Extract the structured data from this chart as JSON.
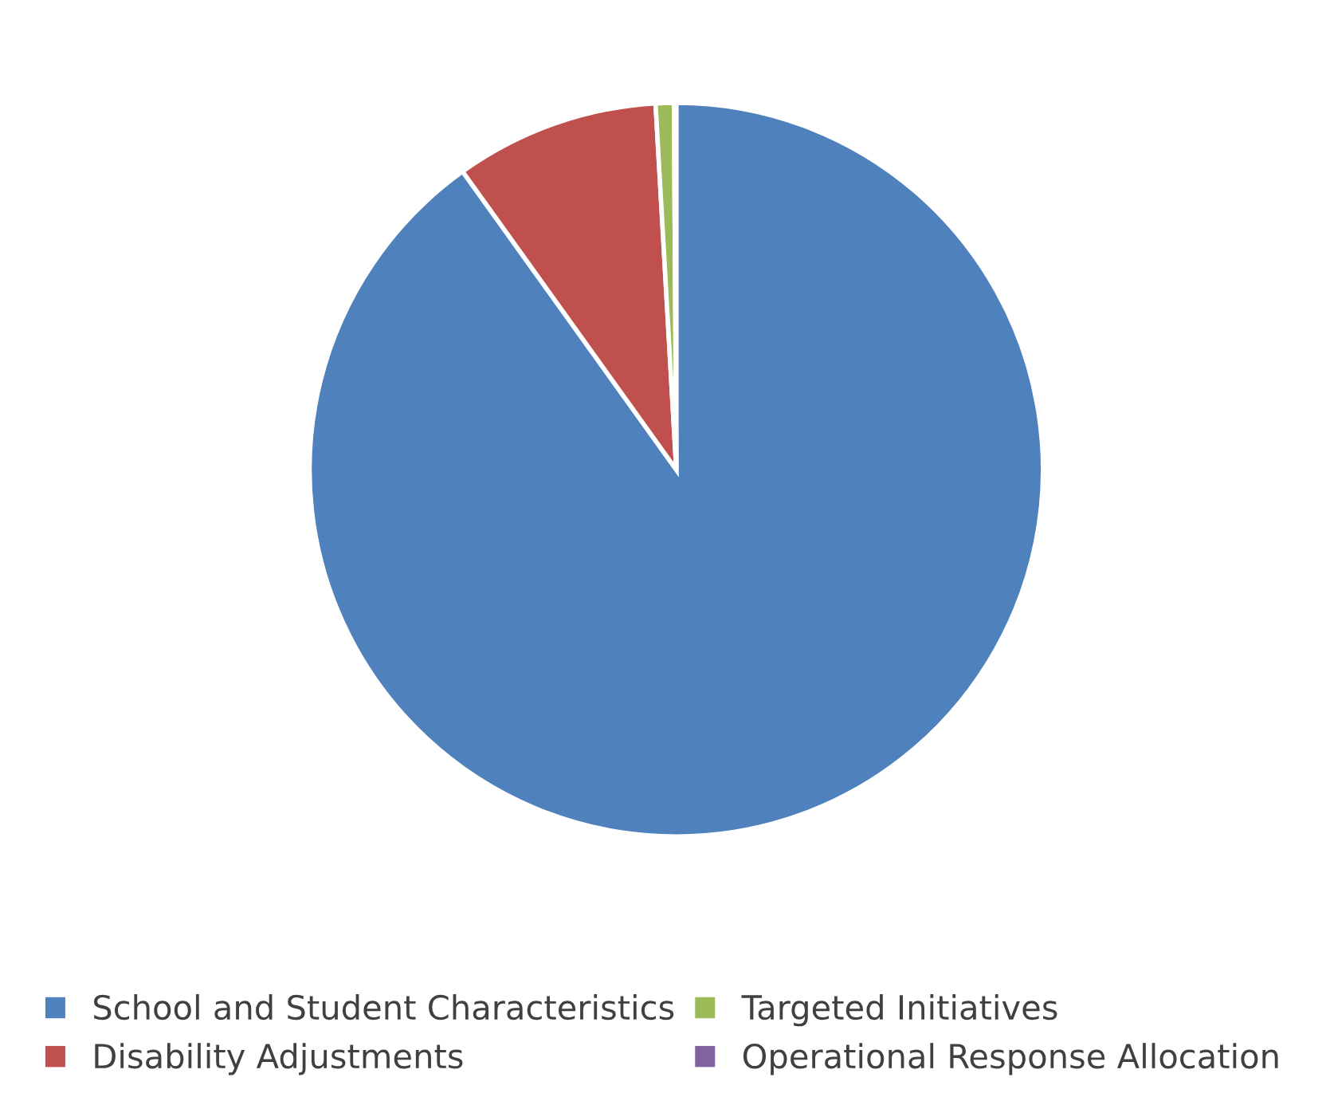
{
  "chart_data": {
    "type": "pie",
    "categories": [
      "School and Student Characteristics",
      "Disability Adjustments",
      "Targeted Initiatives",
      "Operational Response Allocation"
    ],
    "values": [
      90.1,
      9.0,
      0.8,
      0.1
    ],
    "colors": [
      "#4f81bd",
      "#c0504d",
      "#9bbb59",
      "#8064a2"
    ],
    "legend": "bottom"
  }
}
